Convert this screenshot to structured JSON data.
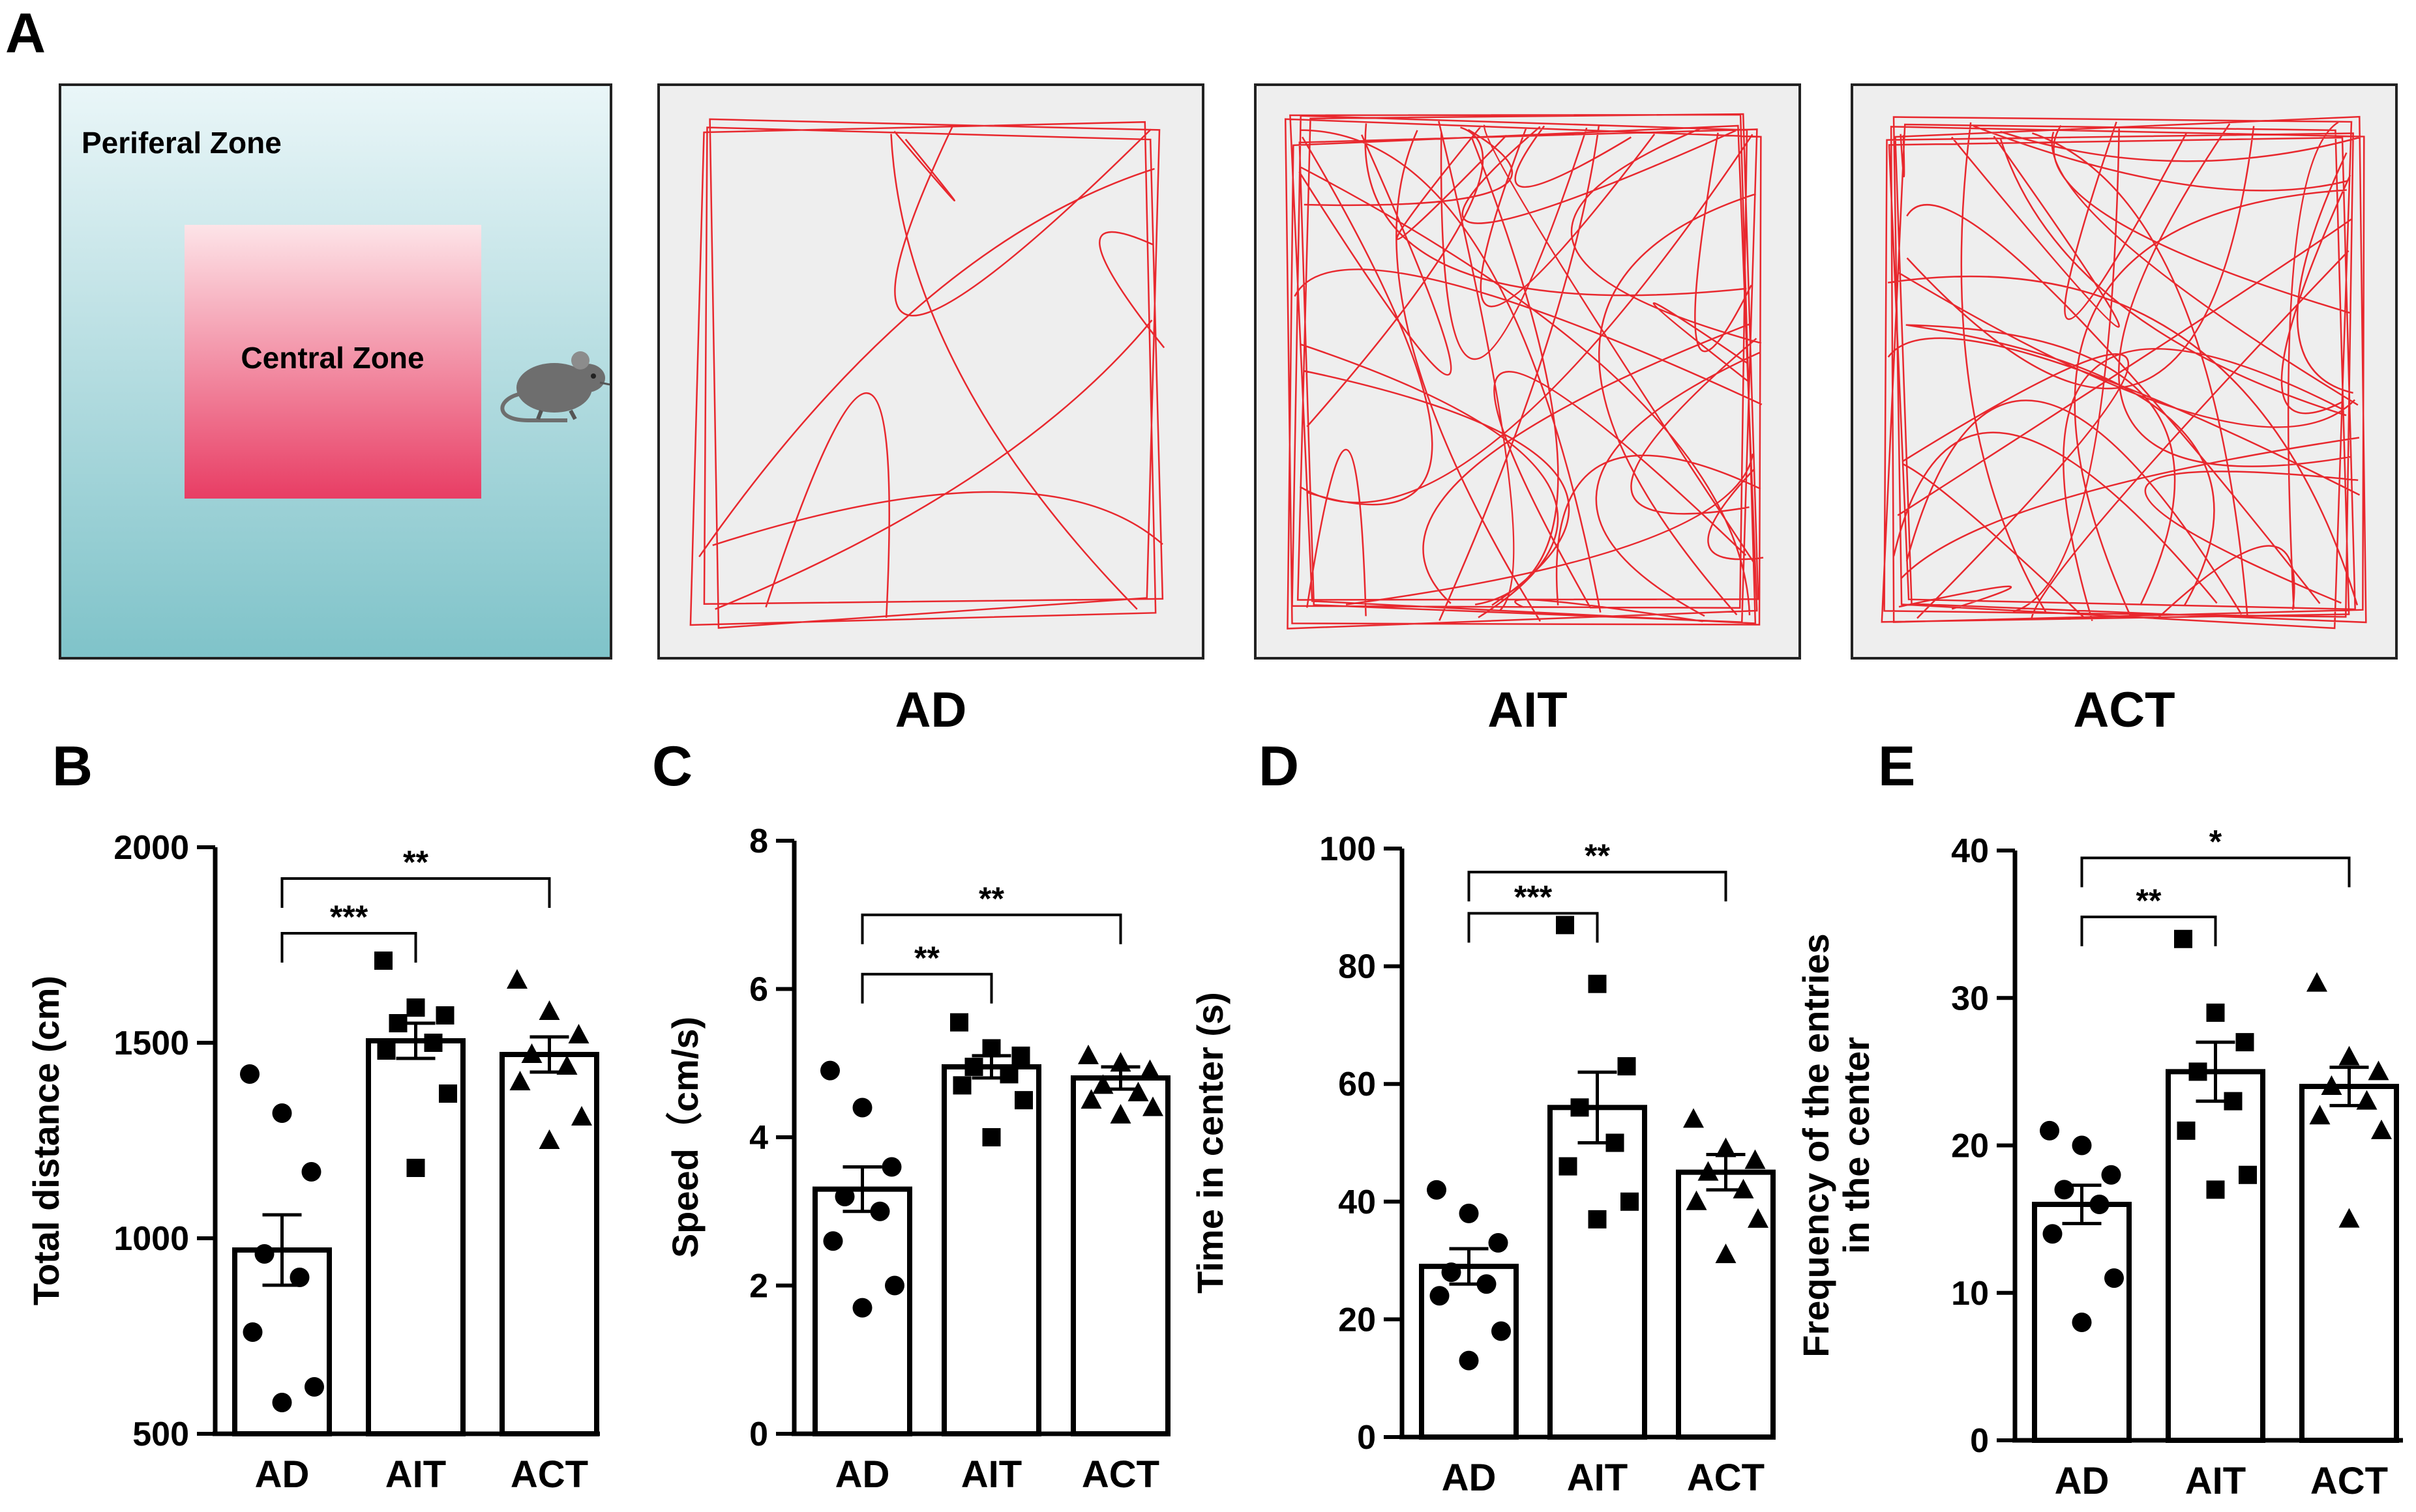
{
  "panel_a": {
    "letter": "A",
    "arena": {
      "peripheral_label": "Periferal Zone",
      "central_label": "Central Zone",
      "icon": "mouse-icon",
      "colors": {
        "peripheral_top": "#eaf6f8",
        "peripheral_bottom": "#7fc3c9",
        "central_top": "#fde4e8",
        "central_bottom": "#e83d64"
      }
    },
    "tracks": [
      {
        "label": "AD"
      },
      {
        "label": "AIT"
      },
      {
        "label": "ACT"
      }
    ],
    "track_colors": {
      "background": "#eeeeee",
      "path": "#e8282e"
    }
  },
  "chart_data": [
    {
      "letter": "B",
      "type": "bar",
      "title": "",
      "xlabel": "",
      "ylabel": "Total distance (cm)",
      "ylim": [
        500,
        2000
      ],
      "yticks": [
        500,
        1000,
        1500,
        2000
      ],
      "categories": [
        "AD",
        "AIT",
        "ACT"
      ],
      "means": [
        970,
        1505,
        1470
      ],
      "sem": [
        90,
        45,
        45
      ],
      "points": [
        [
          1420,
          1320,
          1170,
          960,
          900,
          760,
          620,
          580
        ],
        [
          1710,
          1590,
          1570,
          1550,
          1500,
          1480,
          1370,
          1180
        ],
        [
          1660,
          1580,
          1520,
          1470,
          1440,
          1400,
          1310,
          1250
        ]
      ],
      "markers": [
        "circle",
        "square",
        "triangle"
      ],
      "significance": [
        {
          "from": 0,
          "to": 2,
          "label": "**",
          "y": 1920
        },
        {
          "from": 0,
          "to": 1,
          "label": "***",
          "y": 1780
        }
      ]
    },
    {
      "letter": "C",
      "type": "bar",
      "title": "",
      "xlabel": "",
      "ylabel": "Speed（cm/s)",
      "ylim": [
        0,
        8
      ],
      "yticks": [
        0,
        2,
        4,
        6,
        8
      ],
      "categories": [
        "AD",
        "AIT",
        "ACT"
      ],
      "means": [
        3.3,
        4.95,
        4.8
      ],
      "sem": [
        0.3,
        0.15,
        0.15
      ],
      "points": [
        [
          4.9,
          4.4,
          3.6,
          3.2,
          3.0,
          2.6,
          2.0,
          1.7
        ],
        [
          5.55,
          5.2,
          5.1,
          4.95,
          4.85,
          4.7,
          4.5,
          4.0
        ],
        [
          5.1,
          5.0,
          4.9,
          4.7,
          4.6,
          4.5,
          4.4,
          4.3
        ]
      ],
      "markers": [
        "circle",
        "square",
        "triangle"
      ],
      "significance": [
        {
          "from": 0,
          "to": 2,
          "label": "**",
          "y": 7.0
        },
        {
          "from": 0,
          "to": 1,
          "label": "**",
          "y": 6.2
        }
      ]
    },
    {
      "letter": "D",
      "type": "bar",
      "title": "",
      "xlabel": "",
      "ylabel": "Time in center (s)",
      "ylim": [
        0,
        100
      ],
      "yticks": [
        0,
        20,
        40,
        60,
        80,
        100
      ],
      "categories": [
        "AD",
        "AIT",
        "ACT"
      ],
      "means": [
        29,
        56,
        45
      ],
      "sem": [
        3,
        6,
        3
      ],
      "points": [
        [
          42,
          38,
          33,
          28,
          26,
          24,
          18,
          13
        ],
        [
          87,
          77,
          63,
          56,
          50,
          46,
          40,
          37
        ],
        [
          54,
          49,
          47,
          45,
          42,
          40,
          37,
          31
        ]
      ],
      "markers": [
        "circle",
        "square",
        "triangle"
      ],
      "significance": [
        {
          "from": 0,
          "to": 2,
          "label": "**",
          "y": 96
        },
        {
          "from": 0,
          "to": 1,
          "label": "***",
          "y": 89
        }
      ]
    },
    {
      "letter": "E",
      "type": "bar",
      "title": "",
      "xlabel": "",
      "ylabel": "Frequency of the entries\nin the center",
      "ylim": [
        0,
        40
      ],
      "yticks": [
        0,
        10,
        20,
        30,
        40
      ],
      "categories": [
        "AD",
        "AIT",
        "ACT"
      ],
      "means": [
        16,
        25,
        24
      ],
      "sem": [
        1.3,
        2,
        1.3
      ],
      "points": [
        [
          21,
          20,
          18,
          17,
          16,
          14,
          11,
          8
        ],
        [
          34,
          29,
          27,
          25,
          23,
          21,
          18,
          17
        ],
        [
          31,
          26,
          25,
          24,
          23,
          22,
          21,
          15
        ]
      ],
      "markers": [
        "circle",
        "square",
        "triangle"
      ],
      "significance": [
        {
          "from": 0,
          "to": 2,
          "label": "*",
          "y": 39.5
        },
        {
          "from": 0,
          "to": 1,
          "label": "**",
          "y": 35.5
        }
      ]
    }
  ]
}
